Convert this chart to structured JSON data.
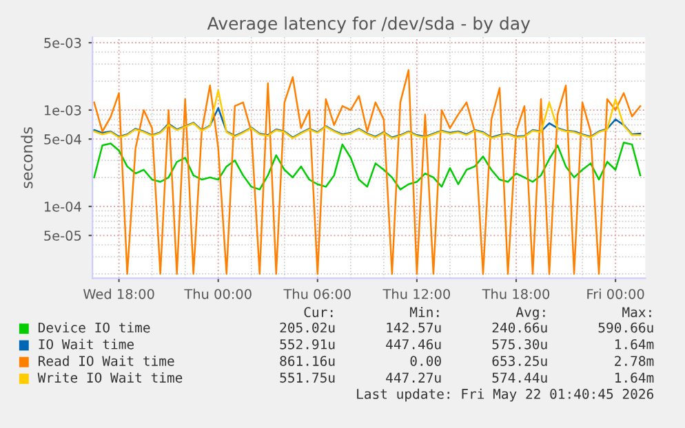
{
  "chart_data": {
    "type": "line",
    "title": "Average latency for /dev/sda - by day",
    "ylabel": "seconds",
    "log": "y",
    "grid": true,
    "legend": "bottom",
    "x": [
      "2026-05-20T16:30",
      "2026-05-20T17:00",
      "2026-05-20T17:30",
      "2026-05-20T18:00",
      "2026-05-20T18:30",
      "2026-05-20T19:00",
      "2026-05-20T19:30",
      "2026-05-20T20:00",
      "2026-05-20T20:30",
      "2026-05-20T21:00",
      "2026-05-20T21:30",
      "2026-05-20T22:00",
      "2026-05-20T22:30",
      "2026-05-20T23:00",
      "2026-05-20T23:30",
      "2026-05-21T00:00",
      "2026-05-21T00:30",
      "2026-05-21T01:00",
      "2026-05-21T01:30",
      "2026-05-21T02:00",
      "2026-05-21T02:30",
      "2026-05-21T03:00",
      "2026-05-21T03:30",
      "2026-05-21T04:00",
      "2026-05-21T04:30",
      "2026-05-21T05:00",
      "2026-05-21T05:30",
      "2026-05-21T06:00",
      "2026-05-21T06:30",
      "2026-05-21T07:00",
      "2026-05-21T07:30",
      "2026-05-21T08:00",
      "2026-05-21T08:30",
      "2026-05-21T09:00",
      "2026-05-21T09:30",
      "2026-05-21T10:00",
      "2026-05-21T10:30",
      "2026-05-21T11:00",
      "2026-05-21T11:30",
      "2026-05-21T12:00",
      "2026-05-21T12:30",
      "2026-05-21T13:00",
      "2026-05-21T13:30",
      "2026-05-21T14:00",
      "2026-05-21T14:30",
      "2026-05-21T15:00",
      "2026-05-21T15:30",
      "2026-05-21T16:00",
      "2026-05-21T16:30",
      "2026-05-21T17:00",
      "2026-05-21T17:30",
      "2026-05-21T18:00",
      "2026-05-21T18:30",
      "2026-05-21T19:00",
      "2026-05-21T19:30",
      "2026-05-21T20:00",
      "2026-05-21T20:30",
      "2026-05-21T21:00",
      "2026-05-21T21:30",
      "2026-05-21T22:00",
      "2026-05-21T22:30",
      "2026-05-21T23:00",
      "2026-05-21T23:30",
      "2026-05-22T00:00",
      "2026-05-22T00:30",
      "2026-05-22T01:00",
      "2026-05-22T01:30"
    ],
    "xlim": [
      "2026-05-20T16:24",
      "2026-05-22T01:48"
    ],
    "xticks": [
      {
        "value": "2026-05-20T18:00",
        "label": "Wed 18:00"
      },
      {
        "value": "2026-05-21T00:00",
        "label": "Thu 00:00"
      },
      {
        "value": "2026-05-21T06:00",
        "label": "Thu 06:00"
      },
      {
        "value": "2026-05-21T12:00",
        "label": "Thu 12:00"
      },
      {
        "value": "2026-05-21T18:00",
        "label": "Thu 18:00"
      },
      {
        "value": "2026-05-22T00:00",
        "label": "Fri 00:00"
      }
    ],
    "ylim": [
      1.8e-05,
      0.0057
    ],
    "yticks": [
      {
        "value": 5e-05,
        "label": "5e-05"
      },
      {
        "value": 0.0001,
        "label": "1e-04"
      },
      {
        "value": 0.0005,
        "label": "5e-04"
      },
      {
        "value": 0.001,
        "label": "1e-03"
      },
      {
        "value": 0.005,
        "label": "5e-03"
      }
    ],
    "series": [
      {
        "name": "Device IO time",
        "color": "#00cc00",
        "values": [
          0.0002,
          0.00043,
          0.00045,
          0.00038,
          0.00026,
          0.00022,
          0.00024,
          0.00019,
          0.00018,
          0.0002,
          0.00029,
          0.00032,
          0.00021,
          0.00019,
          0.0002,
          0.00019,
          0.00026,
          0.0003,
          0.00021,
          0.00016,
          0.00015,
          0.00021,
          0.00034,
          0.00024,
          0.0002,
          0.00026,
          0.00019,
          0.00017,
          0.00016,
          0.00021,
          0.00044,
          0.00032,
          0.00019,
          0.00016,
          0.00028,
          0.00024,
          0.0002,
          0.00015,
          0.00017,
          0.00018,
          0.00022,
          0.0002,
          0.00016,
          0.00025,
          0.00017,
          0.00024,
          0.00026,
          0.00033,
          0.00024,
          0.00019,
          0.00018,
          0.00022,
          0.0002,
          0.00018,
          0.00021,
          0.00031,
          0.00043,
          0.00026,
          0.0002,
          0.00024,
          0.00028,
          0.00019,
          0.00029,
          0.00024,
          0.00046,
          0.00044,
          0.00021
        ]
      },
      {
        "name": "IO Wait time",
        "color": "#0066b3",
        "values": [
          0.00062,
          0.00058,
          0.0006,
          0.00053,
          0.00056,
          0.00064,
          0.0006,
          0.00055,
          0.00059,
          0.00072,
          0.00063,
          0.00068,
          0.00074,
          0.00062,
          0.00069,
          0.00105,
          0.0006,
          0.00054,
          0.00059,
          0.00066,
          0.00057,
          0.00055,
          0.00063,
          0.0006,
          0.00052,
          0.00058,
          0.00064,
          0.00059,
          0.00068,
          0.00061,
          0.00056,
          0.00058,
          0.00064,
          0.00057,
          0.00053,
          0.00059,
          0.00052,
          0.00055,
          0.0006,
          0.00055,
          0.00053,
          0.00057,
          0.00061,
          0.00058,
          0.0006,
          0.00056,
          0.00062,
          0.00059,
          0.00052,
          0.00055,
          0.00057,
          0.00053,
          0.00054,
          0.00062,
          0.0006,
          0.00073,
          0.00065,
          0.00061,
          0.0006,
          0.00056,
          0.00053,
          0.0006,
          0.00064,
          0.0008,
          0.0007,
          0.00056,
          0.00057
        ]
      },
      {
        "name": "Read IO Wait time",
        "color": "#ff8000",
        "values": [
          0.0012,
          0.0006,
          0.00085,
          0.0015,
          2e-05,
          0.0004,
          0.001,
          0.00065,
          2e-05,
          0.001,
          2e-05,
          0.0013,
          2e-05,
          0.0006,
          0.0018,
          0.0004,
          2e-05,
          0.0011,
          0.0012,
          0.0006,
          2e-05,
          0.0019,
          2e-05,
          0.0012,
          0.0022,
          0.00065,
          0.001,
          2e-05,
          0.0013,
          0.0007,
          0.0011,
          0.001,
          0.0014,
          0.0006,
          0.0012,
          0.0008,
          2e-05,
          0.0012,
          0.0026,
          2e-05,
          0.0009,
          2e-05,
          0.001,
          0.00065,
          0.0009,
          0.0012,
          0.0006,
          2e-05,
          0.0008,
          0.0017,
          2e-05,
          0.0006,
          0.0011,
          2e-05,
          0.0013,
          2e-05,
          0.0009,
          0.0018,
          2e-05,
          0.0012,
          0.0006,
          2e-05,
          0.0013,
          0.001,
          0.0015,
          0.00086,
          0.0011
        ]
      },
      {
        "name": "Write IO Wait time",
        "color": "#ffcc00",
        "values": [
          0.0006,
          0.00056,
          0.00059,
          0.00052,
          0.00055,
          0.00063,
          0.00059,
          0.00054,
          0.00058,
          0.0007,
          0.00062,
          0.00067,
          0.00073,
          0.00061,
          0.00068,
          0.0016,
          0.00059,
          0.00053,
          0.00058,
          0.00065,
          0.00056,
          0.00054,
          0.00062,
          0.00059,
          0.00051,
          0.00057,
          0.00063,
          0.00058,
          0.00067,
          0.0006,
          0.00055,
          0.00057,
          0.00063,
          0.00056,
          0.00052,
          0.00058,
          0.00051,
          0.00054,
          0.00059,
          0.00054,
          0.00052,
          0.00056,
          0.0006,
          0.00057,
          0.00059,
          0.00055,
          0.00061,
          0.00058,
          0.00051,
          0.00054,
          0.00056,
          0.00052,
          0.00053,
          0.00061,
          0.00059,
          0.0012,
          0.00064,
          0.0006,
          0.00059,
          0.00055,
          0.00052,
          0.00059,
          0.00063,
          0.0013,
          0.00069,
          0.00055,
          0.00055
        ]
      }
    ],
    "annotations": [
      "Cur:",
      "Min:",
      "Avg:",
      "Max:",
      "205.02u",
      "142.57u",
      "240.66u",
      "590.66u",
      "552.91u",
      "447.46u",
      "575.30u",
      "1.64m",
      "861.16u",
      "0.00",
      "653.25u",
      "2.78m",
      "551.75u",
      "447.27u",
      "574.44u",
      "1.64m",
      "Last update: Fri May 22 01:40:45 2026"
    ]
  }
}
